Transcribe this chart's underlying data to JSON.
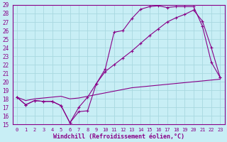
{
  "xlabel": "Windchill (Refroidissement éolien,°C)",
  "bg_color": "#c8eef5",
  "grid_color": "#a8d8e0",
  "line_color": "#880088",
  "xlim": [
    -0.5,
    23.5
  ],
  "ylim": [
    15,
    29
  ],
  "xticks": [
    0,
    1,
    2,
    3,
    4,
    5,
    6,
    7,
    8,
    9,
    10,
    11,
    12,
    13,
    14,
    15,
    16,
    17,
    18,
    19,
    20,
    21,
    22,
    23
  ],
  "yticks": [
    15,
    16,
    17,
    18,
    19,
    20,
    21,
    22,
    23,
    24,
    25,
    26,
    27,
    28,
    29
  ],
  "line1_x": [
    0,
    1,
    2,
    3,
    4,
    5,
    6,
    7,
    8,
    9,
    10,
    11,
    12,
    13,
    14,
    15,
    16,
    17,
    18,
    19,
    20,
    21,
    22,
    23
  ],
  "line1_y": [
    18.2,
    17.3,
    17.8,
    17.7,
    17.7,
    17.2,
    15.2,
    16.5,
    16.6,
    19.8,
    21.5,
    25.8,
    26.0,
    27.4,
    28.5,
    28.8,
    28.9,
    28.7,
    28.8,
    28.8,
    28.8,
    26.5,
    22.3,
    20.5
  ],
  "line2_x": [
    0,
    1,
    2,
    3,
    4,
    5,
    6,
    7,
    8,
    9,
    10,
    11,
    12,
    13,
    14,
    15,
    16,
    17,
    18,
    19,
    20,
    21,
    22,
    23
  ],
  "line2_y": [
    18.2,
    17.3,
    17.8,
    17.7,
    17.7,
    17.2,
    15.2,
    17.0,
    18.2,
    19.8,
    21.2,
    22.0,
    22.8,
    23.6,
    24.5,
    25.4,
    26.2,
    27.0,
    27.5,
    27.9,
    28.4,
    27.1,
    24.0,
    20.5
  ],
  "line3_x": [
    0,
    1,
    2,
    3,
    4,
    5,
    6,
    7,
    8,
    9,
    10,
    11,
    12,
    13,
    14,
    15,
    16,
    17,
    18,
    19,
    20,
    21,
    22,
    23
  ],
  "line3_y": [
    18.2,
    17.8,
    18.0,
    18.1,
    18.2,
    18.3,
    18.0,
    18.1,
    18.3,
    18.5,
    18.7,
    18.9,
    19.1,
    19.3,
    19.4,
    19.5,
    19.6,
    19.7,
    19.8,
    19.9,
    20.0,
    20.1,
    20.2,
    20.3
  ]
}
